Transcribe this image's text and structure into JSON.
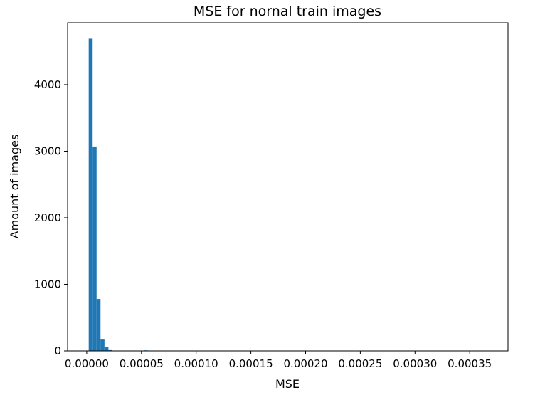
{
  "chart_data": {
    "type": "bar",
    "title": "MSE for nornal train images",
    "xlabel": "MSE",
    "ylabel": "Amount of images",
    "xlim": [
      -1.75e-05,
      0.000385
    ],
    "ylim": [
      0,
      4930
    ],
    "xticks": [
      0.0,
      5e-05,
      0.0001,
      0.00015,
      0.0002,
      0.00025,
      0.0003,
      0.00035
    ],
    "xtick_labels": [
      "0.00000",
      "0.00005",
      "0.00010",
      "0.00015",
      "0.00020",
      "0.00025",
      "0.00030",
      "0.00035"
    ],
    "yticks": [
      0,
      1000,
      2000,
      3000,
      4000
    ],
    "ytick_labels": [
      "0",
      "1000",
      "2000",
      "3000",
      "4000"
    ],
    "bin_width": 3.6e-06,
    "bins": [
      {
        "x0": 1.8e-06,
        "count": 4690
      },
      {
        "x0": 5.4e-06,
        "count": 3070
      },
      {
        "x0": 9e-06,
        "count": 780
      },
      {
        "x0": 1.26e-05,
        "count": 170
      },
      {
        "x0": 1.62e-05,
        "count": 55
      },
      {
        "x0": 1.98e-05,
        "count": 12
      },
      {
        "x0": 5.22e-05,
        "count": 8
      }
    ],
    "grid": false,
    "colors": {
      "bar": "#1f77b4",
      "axis": "#000000"
    }
  }
}
